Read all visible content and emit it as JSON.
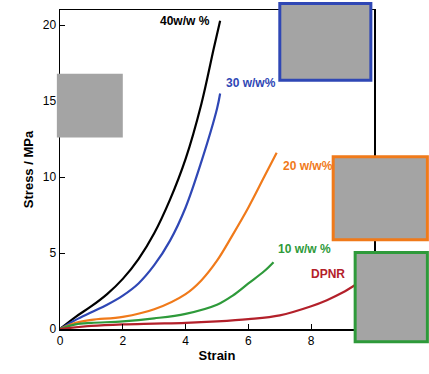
{
  "chart_data": {
    "type": "line",
    "x_label": "Strain",
    "y_label": "Stress / MPa",
    "xlim": [
      0,
      10
    ],
    "ylim": [
      0,
      21
    ],
    "xticks": [
      0,
      2,
      4,
      6,
      8
    ],
    "yticks": [
      0,
      5,
      10,
      15,
      20
    ],
    "grid": false,
    "series": [
      {
        "name": "40w/w %",
        "color": "#000000",
        "x": [
          0,
          0.5,
          1,
          1.5,
          2,
          2.5,
          3,
          3.5,
          4,
          4.5,
          4.9,
          5.1
        ],
        "values": [
          0,
          0.8,
          1.5,
          2.3,
          3.3,
          4.6,
          6.3,
          8.5,
          11.2,
          14.8,
          18.5,
          20.3
        ]
      },
      {
        "name": "30 w/w%",
        "color": "#2f47b5",
        "x": [
          0,
          0.5,
          1,
          1.5,
          2,
          2.5,
          3,
          3.5,
          4,
          4.5,
          5,
          5.1
        ],
        "values": [
          0,
          0.6,
          1.1,
          1.6,
          2.2,
          3.0,
          4.2,
          5.8,
          8.0,
          11.0,
          14.5,
          15.5
        ]
      },
      {
        "name": "20 w/w%",
        "color": "#f07a1a",
        "x": [
          0,
          0.5,
          1,
          2,
          3,
          4,
          4.5,
          5,
          5.5,
          6,
          6.5,
          6.9
        ],
        "values": [
          0,
          0.4,
          0.6,
          0.8,
          1.3,
          2.3,
          3.2,
          4.5,
          6.2,
          8.0,
          10.0,
          11.6
        ]
      },
      {
        "name": "10 w/w %",
        "color": "#2e9a3a",
        "x": [
          0,
          0.5,
          1,
          2,
          3,
          4,
          5,
          5.5,
          6,
          6.5,
          6.8
        ],
        "values": [
          0,
          0.3,
          0.4,
          0.5,
          0.7,
          1.0,
          1.6,
          2.2,
          3.0,
          3.8,
          4.4
        ]
      },
      {
        "name": "DPNR",
        "color": "#b3202a",
        "x": [
          0,
          1,
          2,
          3,
          4,
          5,
          6,
          7,
          8,
          8.5,
          9,
          9.4
        ],
        "values": [
          0,
          0.2,
          0.3,
          0.35,
          0.4,
          0.5,
          0.65,
          0.9,
          1.5,
          1.9,
          2.4,
          2.9
        ]
      }
    ]
  }
}
